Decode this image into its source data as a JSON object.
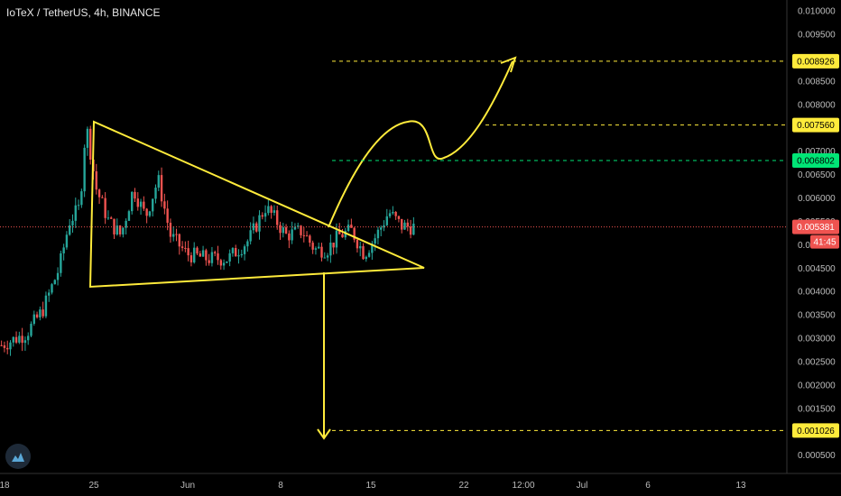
{
  "header": {
    "symbol_title": "IoTeX / TetherUS, 4h, BINANCE"
  },
  "colors": {
    "background": "#000000",
    "bull_candle": "#26a69a",
    "bear_candle": "#ef5350",
    "annotation": "#ffeb3b",
    "green_level": "#00e676",
    "current_price_tag": "#ef5350"
  },
  "icons": {
    "logo": "tradingview-cloud-icon"
  },
  "chart_data": {
    "type": "candlestick",
    "title": "IoTeX / TetherUS, 4h, BINANCE",
    "ylim": [
      0.0003,
      0.0101
    ],
    "y_ticks": [
      "0.010000",
      "0.009500",
      "0.009000",
      "0.008500",
      "0.008000",
      "0.007500",
      "0.007000",
      "0.006500",
      "0.006000",
      "0.005500",
      "0.005000",
      "0.004500",
      "0.004000",
      "0.003500",
      "0.003000",
      "0.002500",
      "0.002000",
      "0.001500",
      "0.001000",
      "0.000500"
    ],
    "x_ticks": [
      "18",
      "25",
      "Jun",
      "8",
      "15",
      "22",
      "12:00",
      "Jul",
      "6",
      "13"
    ],
    "price_waypoints": [
      [
        0.0,
        0.00285
      ],
      [
        0.06,
        0.0031
      ],
      [
        0.1,
        0.0036
      ],
      [
        0.14,
        0.0045
      ],
      [
        0.165,
        0.0055
      ],
      [
        0.19,
        0.0058
      ],
      [
        0.205,
        0.0076
      ],
      [
        0.23,
        0.0062
      ],
      [
        0.26,
        0.0055
      ],
      [
        0.29,
        0.0052
      ],
      [
        0.32,
        0.0062
      ],
      [
        0.35,
        0.0056
      ],
      [
        0.38,
        0.0064
      ],
      [
        0.41,
        0.0052
      ],
      [
        0.45,
        0.0048
      ],
      [
        0.5,
        0.0047
      ],
      [
        0.55,
        0.0047
      ],
      [
        0.6,
        0.0051
      ],
      [
        0.64,
        0.0058
      ],
      [
        0.66,
        0.0056
      ],
      [
        0.69,
        0.0052
      ],
      [
        0.73,
        0.0053
      ],
      [
        0.76,
        0.0049
      ],
      [
        0.79,
        0.0049
      ],
      [
        0.82,
        0.0052
      ],
      [
        0.85,
        0.0053
      ],
      [
        0.88,
        0.0048
      ],
      [
        0.91,
        0.0052
      ],
      [
        0.94,
        0.0057
      ],
      [
        0.97,
        0.0054
      ],
      [
        1.0,
        0.00538
      ]
    ],
    "candle_count": 140,
    "current_price": "0.005381",
    "countdown": "41:45",
    "levels": [
      {
        "label": "0.008926",
        "value": 0.008926,
        "style": "yellow",
        "dashed_color": "#ffeb3b"
      },
      {
        "label": "0.007560",
        "value": 0.00756,
        "style": "yellow",
        "dashed_color": "#ffeb3b"
      },
      {
        "label": "0.006802",
        "value": 0.006802,
        "style": "green",
        "dashed_color": "#00e676"
      },
      {
        "label": "0.001026",
        "value": 0.001026,
        "style": "yellow",
        "dashed_color": "#ffeb3b"
      }
    ],
    "grid": false
  }
}
